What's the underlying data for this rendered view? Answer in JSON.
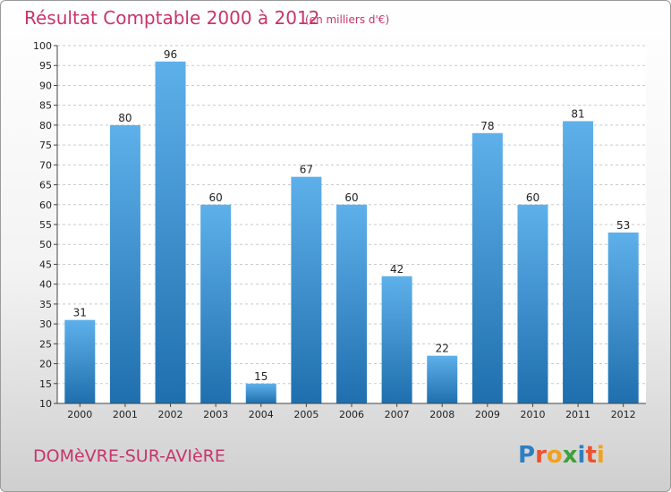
{
  "chart_data": {
    "type": "bar",
    "title": "Résultat Comptable 2000 à 2012",
    "subtitle": "(en milliers d'€)",
    "categories": [
      "2000",
      "2001",
      "2002",
      "2003",
      "2004",
      "2005",
      "2006",
      "2007",
      "2008",
      "2009",
      "2010",
      "2011",
      "2012"
    ],
    "values": [
      31,
      80,
      96,
      60,
      15,
      67,
      60,
      42,
      22,
      78,
      60,
      81,
      53
    ],
    "ylim": [
      10,
      100
    ],
    "yticks": [
      10,
      15,
      20,
      25,
      30,
      35,
      40,
      45,
      50,
      55,
      60,
      65,
      70,
      75,
      80,
      85,
      90,
      95,
      100
    ],
    "grid": true,
    "xlabel": "",
    "ylabel": ""
  },
  "footer": {
    "town": "DOMèVRE-SUR-AVIèRE"
  },
  "logo": {
    "letters": [
      "P",
      "r",
      "o",
      "x",
      "i",
      "t",
      "i"
    ],
    "colors": [
      "#2e7fc2",
      "#e8542f",
      "#f0a21e",
      "#3f9f3a",
      "#2e7fc2",
      "#e8542f",
      "#f0a21e"
    ]
  },
  "colors": {
    "bar_top": "#5eb0ea",
    "bar_bottom": "#1f6fae",
    "accent": "#c8346b"
  }
}
